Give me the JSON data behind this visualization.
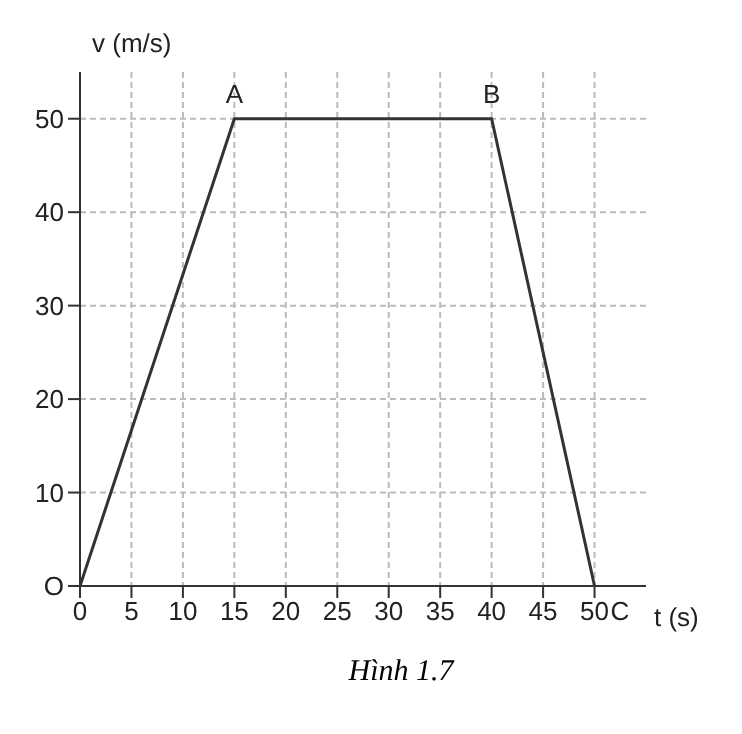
{
  "chart_data": {
    "type": "line",
    "xlabel": "t (s)",
    "ylabel": "v (m/s)",
    "x": [
      0,
      15,
      40,
      50
    ],
    "series": [
      {
        "color": "#333333",
        "values": [
          0,
          50,
          50,
          0
        ]
      }
    ],
    "xlim": [
      0,
      55
    ],
    "xticks": [
      0,
      5,
      10,
      15,
      20,
      25,
      30,
      35,
      40,
      45,
      50
    ],
    "ylim": [
      0,
      55
    ],
    "yticks": [
      {
        "value": 0,
        "label": null
      },
      10,
      20,
      30,
      40,
      50
    ],
    "grid": true,
    "marker": "none",
    "line_style": "solid",
    "annotations": [
      {
        "text": "O",
        "x": 0,
        "y": 0
      },
      {
        "text": "A",
        "x": 15,
        "y": 50
      },
      {
        "text": "B",
        "x": 40,
        "y": 50
      },
      {
        "text": "C",
        "x": 50,
        "y": 0
      },
      "Hình 1.7"
    ]
  }
}
